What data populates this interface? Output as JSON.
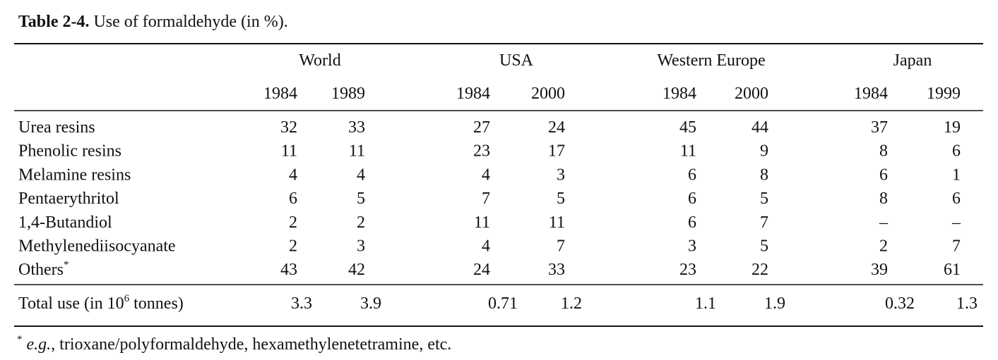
{
  "caption": {
    "label": "Table 2-4.",
    "text": "Use of formaldehyde (in %)."
  },
  "table": {
    "groups": [
      "World",
      "USA",
      "Western Europe",
      "Japan"
    ],
    "years": [
      1984,
      1989,
      1984,
      2000,
      1984,
      2000,
      1984,
      1999
    ],
    "rows": [
      {
        "label": "Urea resins",
        "values": [
          32,
          33,
          27,
          24,
          45,
          44,
          37,
          19
        ]
      },
      {
        "label": "Phenolic resins",
        "values": [
          11,
          11,
          23,
          17,
          11,
          9,
          8,
          6
        ]
      },
      {
        "label": "Melamine resins",
        "values": [
          4,
          4,
          4,
          3,
          6,
          8,
          6,
          1
        ]
      },
      {
        "label": "Pentaerythritol",
        "values": [
          6,
          5,
          7,
          5,
          6,
          5,
          8,
          6
        ]
      },
      {
        "label": "1,4-Butandiol",
        "values": [
          2,
          2,
          11,
          11,
          6,
          7,
          "–",
          "–"
        ]
      },
      {
        "label": "Methylenediisocyanate",
        "values": [
          2,
          3,
          4,
          7,
          3,
          5,
          2,
          7
        ]
      },
      {
        "label": "Others",
        "marker": "*",
        "values": [
          43,
          42,
          24,
          33,
          23,
          22,
          39,
          61
        ]
      }
    ],
    "total": {
      "label": "Total use (in 10",
      "exponent": "6",
      "unit": "tonnes)",
      "values": [
        3.3,
        3.9,
        0.71,
        1.2,
        1.1,
        1.9,
        0.32,
        1.3
      ]
    }
  },
  "footnote": {
    "marker": "*",
    "abbr": "e.g.",
    "text": ", trioxane/polyformaldehyde, hexamethylenetetramine, etc."
  }
}
